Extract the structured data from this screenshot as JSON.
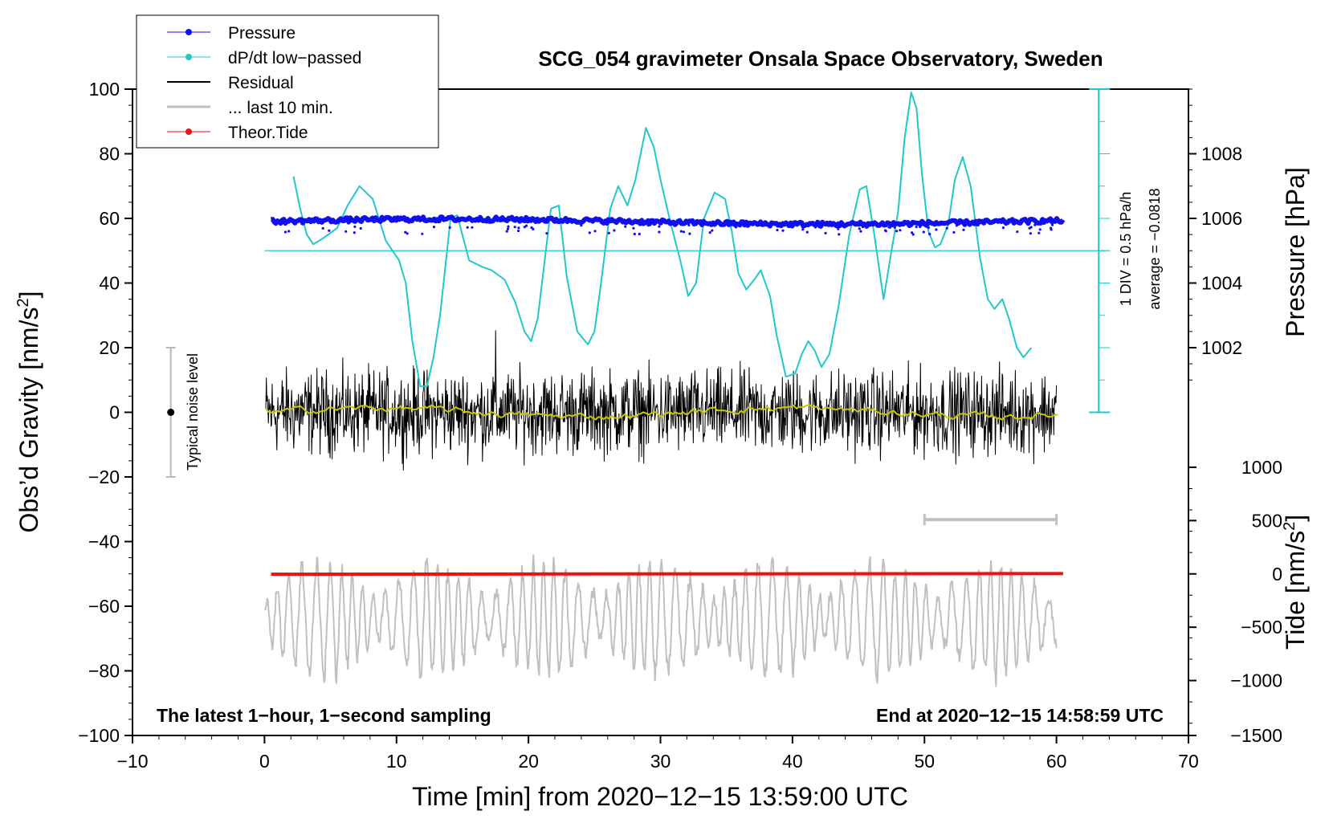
{
  "chart_data": {
    "type": "line",
    "title": "SCG_054 gravimeter Onsala Space Observatory, Sweden",
    "xlabel": "Time [min] from 2020−12−15 13:59:00 UTC",
    "ylabel_left": "Obs’d Gravity [nm/s",
    "ylabel_left_sup": "2",
    "ylabel_left_close": "]",
    "ylabel_pressure": "Pressure [hPa]",
    "ylabel_tide": "Tide [nm/s",
    "ylabel_tide_sup": "2",
    "ylabel_tide_close": "]",
    "xlim": [
      -10,
      70
    ],
    "ylim": [
      -100,
      100
    ],
    "x_ticks": [
      -10,
      0,
      10,
      20,
      30,
      40,
      50,
      60,
      70
    ],
    "x_tick_labels": [
      "−10",
      "0",
      "10",
      "20",
      "30",
      "40",
      "50",
      "60",
      "70"
    ],
    "y_ticks": [
      100,
      80,
      60,
      40,
      20,
      0,
      -20,
      -40,
      -60,
      -80,
      -100
    ],
    "y_tick_labels": [
      "100",
      "80",
      "60",
      "40",
      "20",
      "0",
      "−20",
      "−40",
      "−60",
      "−80",
      "−100"
    ],
    "pressure_ticks": [
      1008,
      1006,
      1004,
      1002
    ],
    "pressure_tick_labels": [
      "1008",
      "1006",
      "1004",
      "1002"
    ],
    "pressure_gravity_equivalent": [
      80,
      60,
      40,
      20
    ],
    "tide_ticks": [
      1000,
      500,
      0,
      -500,
      -1000,
      -1500
    ],
    "tide_tick_labels": [
      "1000",
      "500",
      "0",
      "−500",
      "−1000",
      "−1500"
    ],
    "tide_gravity_equivalent": [
      -17,
      -33.5,
      -50,
      -66.5,
      -83,
      -100
    ],
    "pressure_level_hpa": 1005.9,
    "residual_band": [
      -20,
      20
    ],
    "dpdt": {
      "x": [
        2.2,
        2.7,
        3.2,
        3.7,
        4.5,
        5.5,
        6.3,
        7.2,
        8.2,
        9.2,
        10.2,
        10.7,
        11.2,
        11.8,
        12.3,
        12.8,
        13.3,
        14.1,
        14.6,
        15.5,
        16.5,
        17.2,
        18.2,
        19.0,
        19.7,
        20.2,
        20.7,
        21.7,
        22.3,
        22.9,
        23.7,
        24.5,
        25.0,
        25.5,
        26.2,
        26.8,
        27.5,
        28.1,
        28.9,
        29.5,
        30.0,
        30.8,
        31.5,
        32.1,
        32.7,
        33.3,
        34.1,
        34.9,
        35.4,
        35.9,
        36.5,
        37.1,
        37.6,
        38.3,
        38.8,
        39.5,
        40.2,
        40.7,
        41.2,
        41.7,
        42.2,
        42.8,
        43.5,
        44.3,
        45.1,
        45.6,
        46.2,
        46.9,
        47.5,
        48.0,
        48.5,
        49.0,
        49.4,
        49.8,
        50.3,
        50.8,
        51.2,
        51.8,
        52.3,
        52.9,
        53.5,
        54.2,
        54.8,
        55.3,
        55.9,
        56.4,
        57.0,
        57.5,
        58.1
      ],
      "y": [
        73,
        63,
        55,
        52,
        54,
        57,
        64,
        70,
        66,
        53,
        47,
        40,
        22,
        8,
        8,
        17,
        30,
        60,
        61,
        47,
        45,
        44,
        41,
        34,
        25,
        22,
        29,
        63,
        64,
        42,
        25,
        21,
        25,
        40,
        63,
        70,
        64,
        72,
        88,
        82,
        72,
        58,
        47,
        36,
        40,
        60,
        68,
        66,
        56,
        43,
        38,
        41,
        44,
        36,
        24,
        11,
        12,
        18,
        22,
        19,
        14,
        18,
        33,
        55,
        69,
        70,
        55,
        35,
        50,
        62,
        85,
        99,
        94,
        74,
        56,
        51,
        52,
        58,
        72,
        79,
        70,
        48,
        35,
        32,
        35,
        29,
        20,
        17,
        20
      ]
    },
    "series": [
      {
        "name": "Pressure",
        "color": "#1010ee"
      },
      {
        "name": "dP/dt low−passed",
        "color": "#22c8c8"
      },
      {
        "name": "Residual",
        "color": "#000000"
      },
      {
        "name": "... last 10 min.",
        "color": "#c0c0c0"
      },
      {
        "name": "Theor.Tide",
        "color": "#ee1111"
      }
    ],
    "smoothed_color": "#c8c800",
    "annotations": {
      "bottom_left": "The latest 1−hour, 1−second sampling",
      "bottom_right": "End at 2020−12−15 14:58:59 UTC",
      "scale_div": "1 DIV = 0.5 hPa/h",
      "scale_avg": "average = −0.0818",
      "noise": "Typical noise level",
      "noise_range": [
        -20,
        20
      ],
      "last10_range": [
        50,
        60
      ]
    }
  }
}
